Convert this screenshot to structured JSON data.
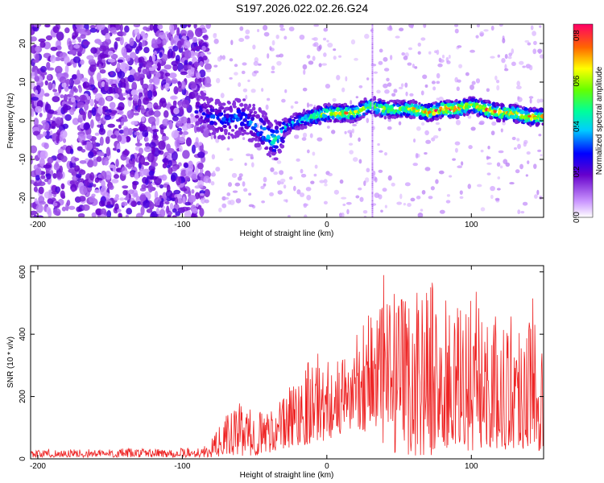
{
  "title": "S197.2026.022.02.26.G24",
  "chart_data": [
    {
      "type": "heatmap",
      "name": "spectrogram",
      "xlabel": "Height of straight line (km)",
      "ylabel": "Frequency (Hz)",
      "xlim": [
        -205,
        150
      ],
      "ylim": [
        -25,
        25
      ],
      "xticks": [
        -200,
        -100,
        0,
        100
      ],
      "yticks": [
        -20,
        -10,
        0,
        10,
        20
      ],
      "colorbar": {
        "label": "Normalized spectral amplitude",
        "range": [
          0,
          0.85
        ],
        "ticks": [
          0.0,
          0.2,
          0.4,
          0.6,
          0.8
        ]
      },
      "ridge": {
        "x": [
          -90,
          -80,
          -70,
          -60,
          -50,
          -40,
          -35,
          -30,
          -20,
          -10,
          0,
          10,
          20,
          30,
          40,
          50,
          60,
          70,
          80,
          90,
          100,
          110,
          120,
          130,
          140,
          150
        ],
        "freq": [
          3,
          1,
          0,
          1,
          -1,
          -4,
          -5,
          -2,
          0,
          1,
          2,
          2,
          2,
          4,
          3,
          3,
          3,
          2,
          3,
          3,
          4,
          3,
          2,
          2,
          1,
          1
        ],
        "amplitude": [
          0.25,
          0.3,
          0.35,
          0.35,
          0.35,
          0.45,
          0.5,
          0.4,
          0.45,
          0.6,
          0.7,
          0.75,
          0.7,
          0.6,
          0.65,
          0.6,
          0.7,
          0.75,
          0.8,
          0.85,
          0.6,
          0.8,
          0.75,
          0.7,
          0.8,
          0.75
        ]
      },
      "noise_floor_end_x": -90
    },
    {
      "type": "line",
      "name": "snr",
      "xlabel": "Height of straight line (km)",
      "ylabel": "SNR (10 * v/v)",
      "xlim": [
        -205,
        150
      ],
      "ylim": [
        0,
        620
      ],
      "xticks": [
        -200,
        -100,
        0,
        100
      ],
      "yticks": [
        0,
        200,
        400,
        600
      ],
      "color": "#ee2222",
      "envelope": {
        "x": [
          -205,
          -100,
          -85,
          -80,
          -70,
          -60,
          -50,
          -40,
          -30,
          -20,
          -10,
          0,
          10,
          20,
          30,
          40,
          50,
          60,
          70,
          80,
          90,
          100,
          110,
          120,
          130,
          140,
          150
        ],
        "max": [
          30,
          35,
          40,
          60,
          140,
          180,
          150,
          170,
          200,
          300,
          350,
          330,
          320,
          400,
          560,
          600,
          500,
          570,
          600,
          520,
          480,
          580,
          480,
          450,
          500,
          540,
          520
        ],
        "min": [
          5,
          5,
          5,
          5,
          10,
          10,
          10,
          20,
          30,
          40,
          50,
          60,
          80,
          100,
          80,
          10,
          20,
          10,
          10,
          20,
          30,
          20,
          40,
          30,
          30,
          20,
          30
        ]
      }
    }
  ]
}
